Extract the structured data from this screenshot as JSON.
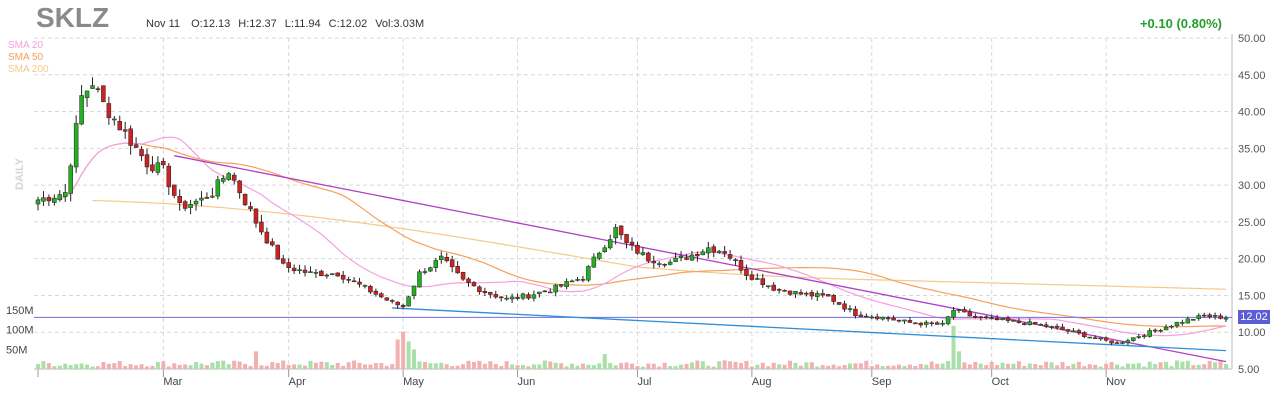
{
  "header": {
    "ticker": "SKLZ",
    "date": "Nov 11",
    "open": "O:12.13",
    "high": "H:12.37",
    "low": "L:11.94",
    "close": "C:12.02",
    "volume": "Vol:3.03M",
    "change": "+0.10 (0.80%)"
  },
  "period_label": "DAILY",
  "last_price_label": "12.02",
  "colors": {
    "up": "#22b022",
    "down": "#cc2222",
    "sma20": "#f5a0e0",
    "sma50": "#f5a05a",
    "sma200": "#f5c98a",
    "trend_purple": "#b040c8",
    "trend_blue": "#2a8fd8",
    "price_line": "#6e6ee0",
    "vol_up": "#a8e0a8",
    "vol_down": "#f2b0b0",
    "change": "#22a02a"
  },
  "chart_data": {
    "type": "candlestick",
    "title": "SKLZ",
    "ylim": [
      5,
      50
    ],
    "y_ticks": [
      "50.00",
      "45.00",
      "40.00",
      "35.00",
      "30.00",
      "25.00",
      "20.00",
      "15.00",
      "10.00",
      "5.00"
    ],
    "x_ticks": [
      "Mar",
      "Apr",
      "May",
      "Jun",
      "Jul",
      "Aug",
      "Sep",
      "Oct",
      "Nov"
    ],
    "volume_ticks": [
      "150M",
      "100M",
      "50M"
    ],
    "volume_max_m": 150,
    "legend": [
      {
        "name": "SMA 20",
        "color": "#f5a0e0"
      },
      {
        "name": "SMA 50",
        "color": "#f5a05a"
      },
      {
        "name": "SMA 200",
        "color": "#f5c98a"
      }
    ],
    "price_anchors": [
      [
        0,
        28
      ],
      [
        5,
        29
      ],
      [
        8,
        42
      ],
      [
        10,
        44
      ],
      [
        12,
        41
      ],
      [
        15,
        38
      ],
      [
        18,
        35
      ],
      [
        20,
        33
      ],
      [
        23,
        32
      ],
      [
        26,
        27
      ],
      [
        30,
        28
      ],
      [
        32,
        29
      ],
      [
        35,
        32
      ],
      [
        40,
        25
      ],
      [
        45,
        19
      ],
      [
        50,
        18
      ],
      [
        55,
        18
      ],
      [
        60,
        16
      ],
      [
        65,
        14
      ],
      [
        67,
        13.5
      ],
      [
        70,
        18
      ],
      [
        74,
        20
      ],
      [
        78,
        17
      ],
      [
        82,
        15.5
      ],
      [
        86,
        14.5
      ],
      [
        90,
        15
      ],
      [
        95,
        16
      ],
      [
        100,
        17.5
      ],
      [
        103,
        21
      ],
      [
        106,
        24
      ],
      [
        108,
        22
      ],
      [
        112,
        20
      ],
      [
        116,
        19.5
      ],
      [
        120,
        20.5
      ],
      [
        123,
        21.5
      ],
      [
        126,
        21
      ],
      [
        130,
        18
      ],
      [
        135,
        16
      ],
      [
        140,
        15.2
      ],
      [
        145,
        14.8
      ],
      [
        150,
        12.5
      ],
      [
        155,
        12
      ],
      [
        160,
        11.3
      ],
      [
        166,
        11
      ],
      [
        168,
        13
      ],
      [
        172,
        12
      ],
      [
        178,
        11.5
      ],
      [
        184,
        11
      ],
      [
        190,
        10
      ],
      [
        195,
        9
      ],
      [
        198,
        8.5
      ],
      [
        202,
        9.5
      ],
      [
        206,
        10.5
      ],
      [
        210,
        11.5
      ],
      [
        214,
        12.2
      ],
      [
        218,
        12.02
      ]
    ],
    "trendlines": [
      {
        "name": "upper",
        "from": [
          25,
          34
        ],
        "to": [
          218,
          6
        ]
      },
      {
        "name": "lower",
        "from": [
          65,
          13.3
        ],
        "to": [
          218,
          7.5
        ]
      }
    ],
    "price_level": 12.02,
    "volume_spikes": [
      {
        "day": 40,
        "value": 45
      },
      {
        "day": 66,
        "value": 75
      },
      {
        "day": 67,
        "value": 95
      },
      {
        "day": 68,
        "value": 70
      },
      {
        "day": 69,
        "value": 50
      },
      {
        "day": 104,
        "value": 38
      },
      {
        "day": 168,
        "value": 110
      },
      {
        "day": 169,
        "value": 45
      }
    ]
  }
}
